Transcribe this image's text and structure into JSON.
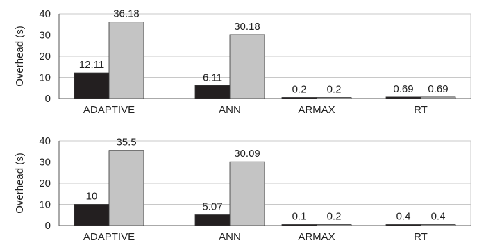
{
  "chart_data": [
    {
      "type": "bar",
      "categories": [
        "ADAPTIVE",
        "ANN",
        "ARMAX",
        "RT"
      ],
      "series": [
        {
          "values": [
            12.11,
            6.11,
            0.2,
            0.69
          ],
          "color": "#231f20"
        },
        {
          "values": [
            36.18,
            30.18,
            0.2,
            0.69
          ],
          "color": "#c4c4c4"
        }
      ],
      "data_labels": [
        [
          "12.11",
          "6.11",
          "0.2",
          "0.69"
        ],
        [
          "36.18",
          "30.18",
          "0.2",
          "0.69"
        ]
      ],
      "ylabel": "Overhead (s)",
      "ylim": [
        0,
        40
      ],
      "yticks": [
        "0",
        "10",
        "20",
        "30",
        "40"
      ],
      "grid": true
    },
    {
      "type": "bar",
      "categories": [
        "ADAPTIVE",
        "ANN",
        "ARMAX",
        "RT"
      ],
      "series": [
        {
          "values": [
            10,
            5.07,
            0.1,
            0.4
          ],
          "color": "#231f20"
        },
        {
          "values": [
            35.5,
            30.09,
            0.2,
            0.4
          ],
          "color": "#c4c4c4"
        }
      ],
      "data_labels": [
        [
          "10",
          "5.07",
          "0.1",
          "0.4"
        ],
        [
          "35.5",
          "30.09",
          "0.2",
          "0.4"
        ]
      ],
      "ylabel": "Overhead (s)",
      "ylim": [
        0,
        40
      ],
      "yticks": [
        "0",
        "10",
        "20",
        "30",
        "40"
      ],
      "grid": true
    }
  ]
}
